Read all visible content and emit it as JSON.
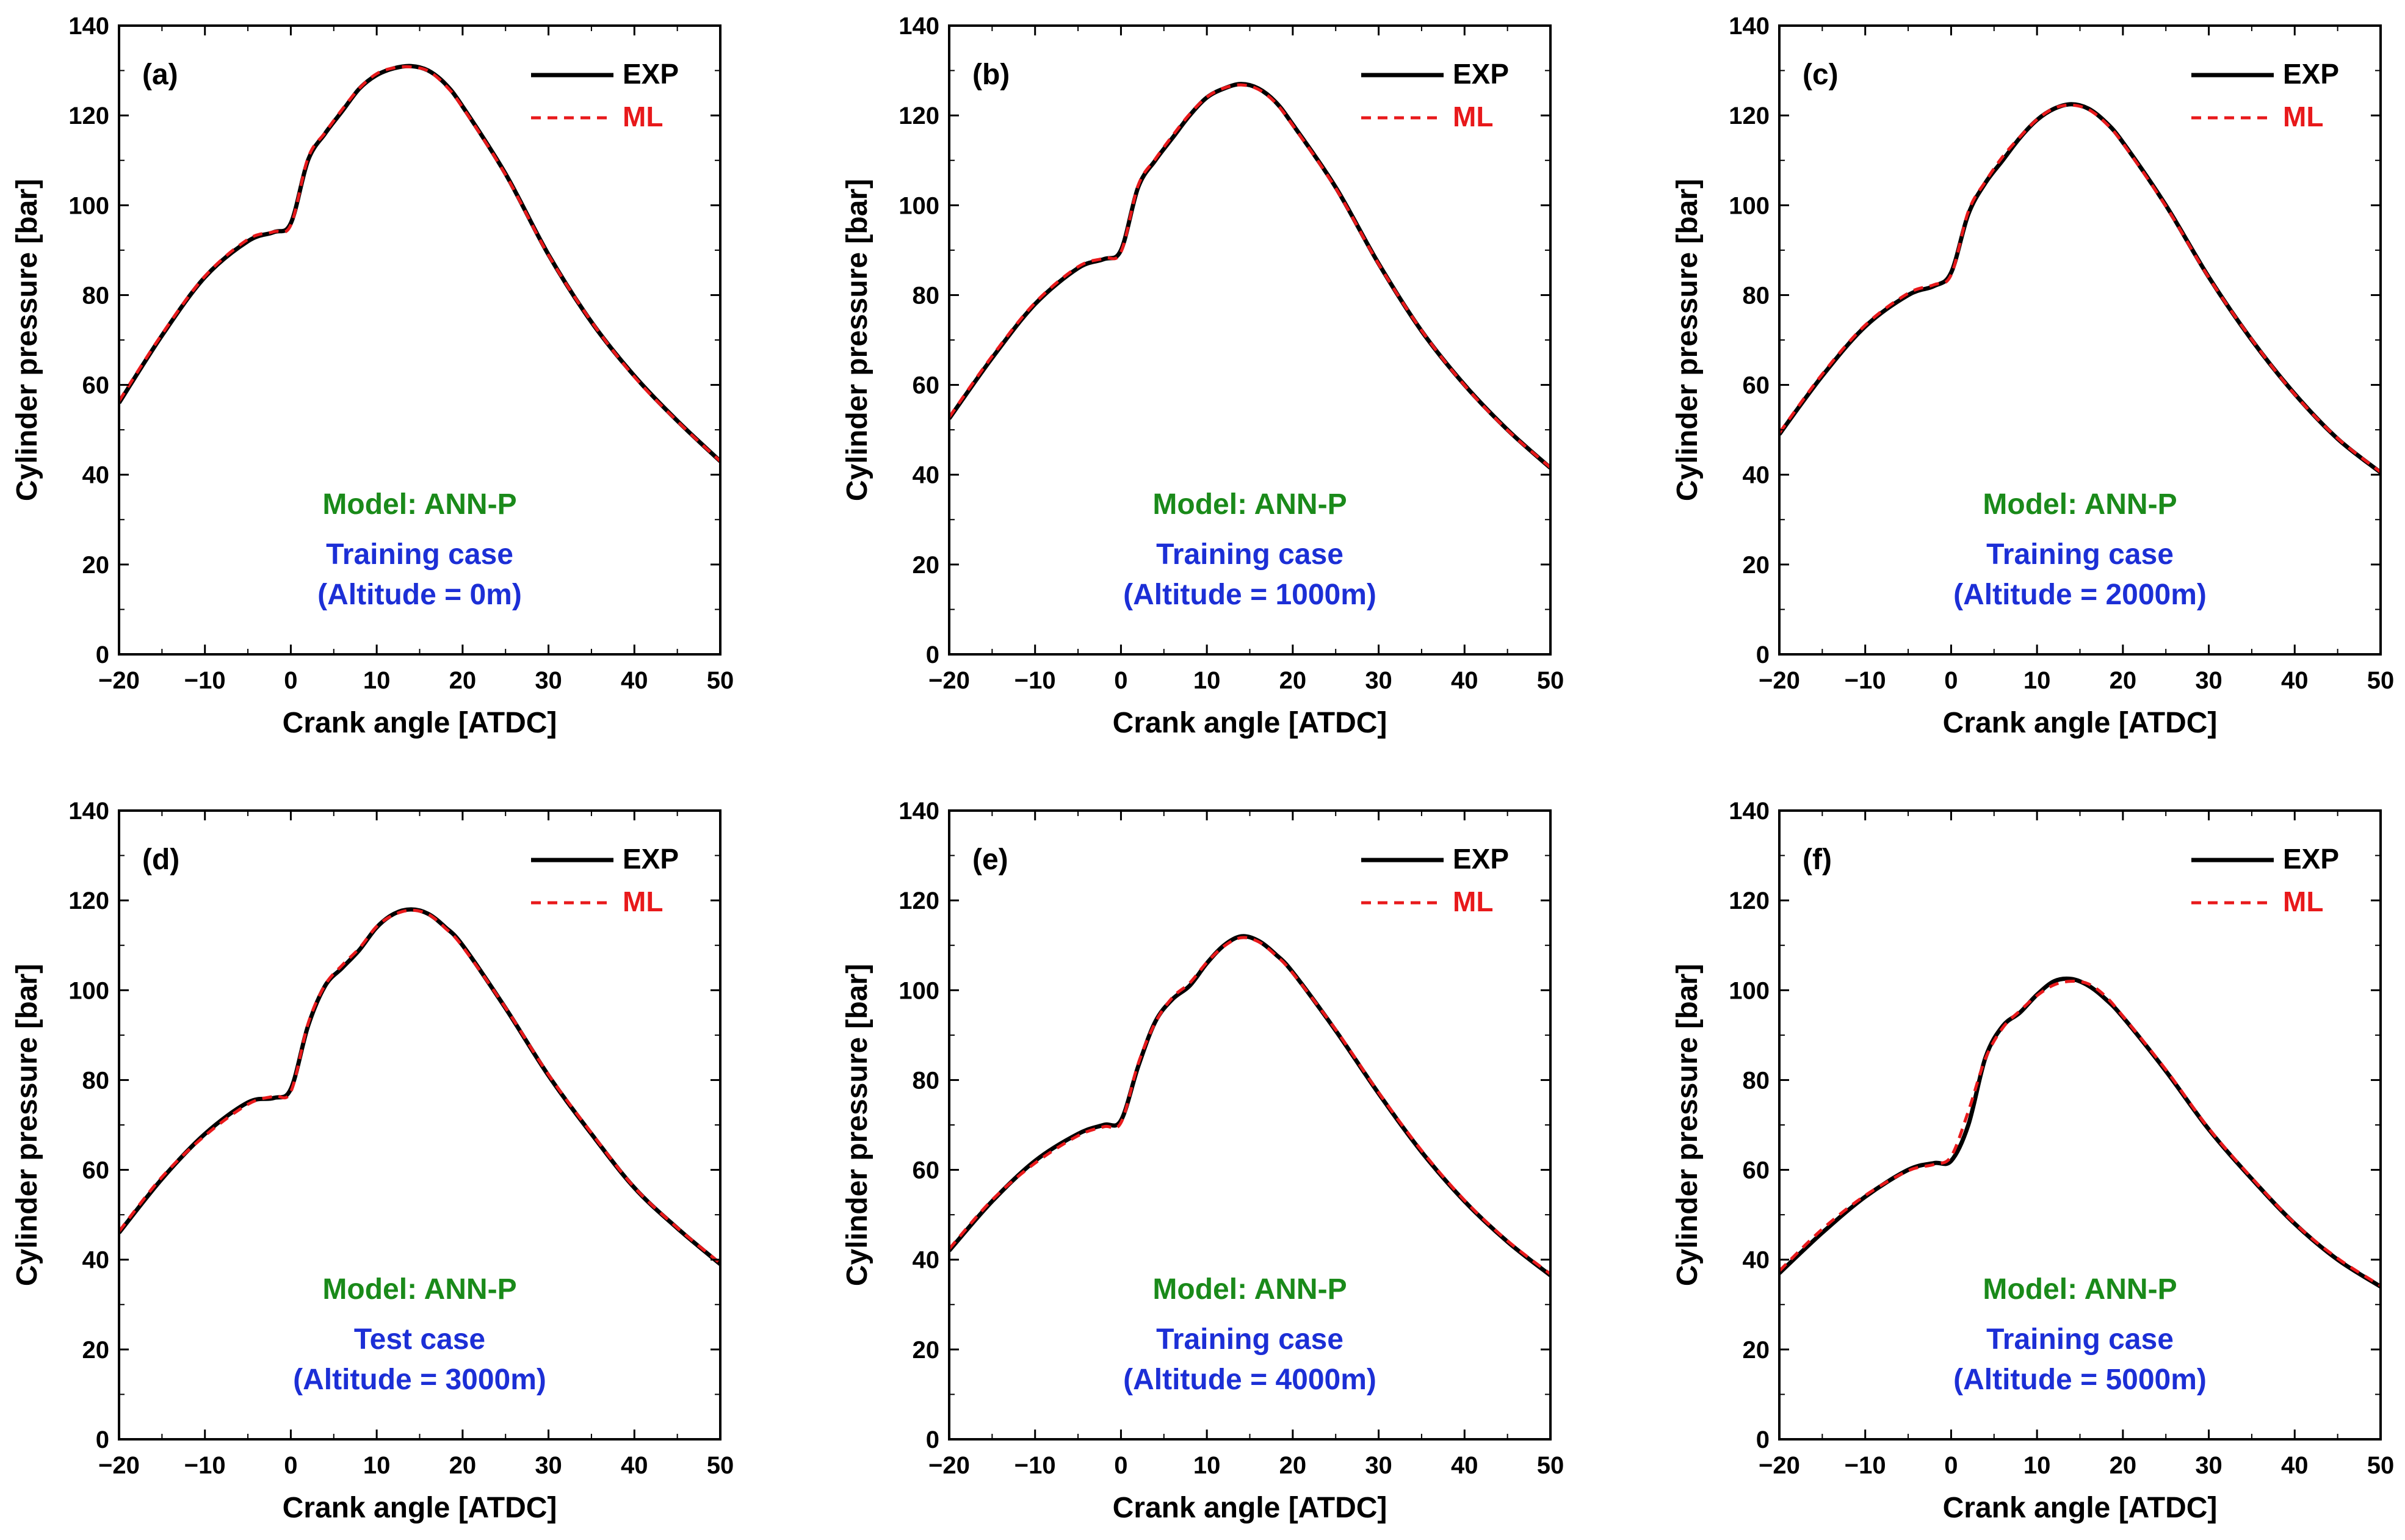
{
  "colors": {
    "exp": "#000000",
    "ml": "#e8191b",
    "model": "#1a8a1a",
    "case": "#1c2fd6",
    "axis": "#000000"
  },
  "chart_data": [
    {
      "type": "line",
      "panel_label": "(a)",
      "xlabel": "Crank angle [ATDC]",
      "ylabel": "Cylinder pressure [bar]",
      "xlim": [
        -20,
        50
      ],
      "ylim": [
        0,
        140
      ],
      "xticks": [
        -20,
        -10,
        0,
        10,
        20,
        30,
        40,
        50
      ],
      "yticks": [
        0,
        20,
        40,
        60,
        80,
        100,
        120,
        140
      ],
      "xtick_labels": [
        "−20",
        "−10",
        "0",
        "10",
        "20",
        "30",
        "40",
        "50"
      ],
      "ytick_labels": [
        "0",
        "20",
        "40",
        "60",
        "80",
        "100",
        "120",
        "140"
      ],
      "legend": [
        "EXP",
        "ML"
      ],
      "legend_position": "top-right",
      "annotations": [
        "Model: ANN-P",
        "Training case",
        "(Altitude = 0m)"
      ],
      "series": [
        {
          "name": "EXP",
          "x": [
            -20,
            -15,
            -10,
            -5,
            -2,
            0,
            2,
            4,
            6,
            8,
            10,
            12,
            14,
            16,
            18,
            20,
            25,
            30,
            35,
            40,
            45,
            50
          ],
          "values": [
            56,
            71,
            84,
            92,
            94,
            96,
            110,
            116,
            121,
            126,
            129,
            130.5,
            131,
            130,
            127,
            122,
            107,
            89,
            74,
            62,
            52,
            43
          ]
        },
        {
          "name": "ML",
          "x": [
            -20,
            -15,
            -10,
            -5,
            -2,
            0,
            2,
            4,
            6,
            8,
            10,
            12,
            14,
            16,
            18,
            20,
            25,
            30,
            35,
            40,
            45,
            50
          ],
          "values": [
            56.4,
            71.3,
            84.2,
            92.4,
            94.1,
            95.6,
            110.5,
            116.2,
            121.4,
            126.1,
            129.3,
            130.6,
            130.8,
            129.9,
            126.7,
            121.8,
            106.8,
            88.9,
            74.1,
            61.8,
            51.9,
            43
          ]
        }
      ]
    },
    {
      "type": "line",
      "panel_label": "(b)",
      "xlabel": "Crank angle [ATDC]",
      "ylabel": "Cylinder pressure [bar]",
      "xlim": [
        -20,
        50
      ],
      "ylim": [
        0,
        140
      ],
      "xticks": [
        -20,
        -10,
        0,
        10,
        20,
        30,
        40,
        50
      ],
      "yticks": [
        0,
        20,
        40,
        60,
        80,
        100,
        120,
        140
      ],
      "xtick_labels": [
        "−20",
        "−10",
        "0",
        "10",
        "20",
        "30",
        "40",
        "50"
      ],
      "ytick_labels": [
        "0",
        "20",
        "40",
        "60",
        "80",
        "100",
        "120",
        "140"
      ],
      "legend": [
        "EXP",
        "ML"
      ],
      "legend_position": "top-right",
      "annotations": [
        "Model: ANN-P",
        "Training case",
        "(Altitude = 1000m)"
      ],
      "series": [
        {
          "name": "EXP",
          "x": [
            -20,
            -15,
            -10,
            -5,
            -2,
            0,
            2,
            4,
            6,
            8,
            10,
            12,
            14,
            16,
            18,
            20,
            25,
            30,
            35,
            40,
            45,
            50
          ],
          "values": [
            52.5,
            66,
            78,
            86,
            88,
            90,
            104,
            110,
            115,
            120,
            124,
            126,
            127,
            126,
            123,
            118,
            104,
            87,
            72,
            60,
            50,
            41.5
          ]
        },
        {
          "name": "ML",
          "x": [
            -20,
            -15,
            -10,
            -5,
            -2,
            0,
            2,
            4,
            6,
            8,
            10,
            12,
            14,
            16,
            18,
            20,
            25,
            30,
            35,
            40,
            45,
            50
          ],
          "values": [
            52.8,
            66.4,
            78.3,
            86.3,
            88.2,
            89.6,
            104.4,
            110.3,
            115.5,
            120.3,
            124.1,
            126.1,
            126.8,
            125.8,
            122.8,
            117.8,
            103.8,
            86.9,
            72.1,
            59.9,
            49.9,
            41.6
          ]
        }
      ]
    },
    {
      "type": "line",
      "panel_label": "(c)",
      "xlabel": "Crank angle [ATDC]",
      "ylabel": "Cylinder pressure [bar]",
      "xlim": [
        -20,
        50
      ],
      "ylim": [
        0,
        140
      ],
      "xticks": [
        -20,
        -10,
        0,
        10,
        20,
        30,
        40,
        50
      ],
      "yticks": [
        0,
        20,
        40,
        60,
        80,
        100,
        120,
        140
      ],
      "xtick_labels": [
        "−20",
        "−10",
        "0",
        "10",
        "20",
        "30",
        "40",
        "50"
      ],
      "ytick_labels": [
        "0",
        "20",
        "40",
        "60",
        "80",
        "100",
        "120",
        "140"
      ],
      "legend": [
        "EXP",
        "ML"
      ],
      "legend_position": "top-right",
      "annotations": [
        "Model: ANN-P",
        "Training case",
        "(Altitude = 2000m)"
      ],
      "series": [
        {
          "name": "EXP",
          "x": [
            -20,
            -15,
            -10,
            -5,
            -2,
            0,
            2,
            4,
            6,
            8,
            10,
            12,
            14,
            16,
            18,
            20,
            25,
            30,
            35,
            40,
            45,
            50
          ],
          "values": [
            49,
            62,
            73,
            80,
            82,
            85,
            98,
            105,
            110,
            115,
            119,
            121.5,
            122.5,
            121.5,
            118.5,
            114,
            100,
            84,
            70,
            58,
            48,
            40.5
          ]
        },
        {
          "name": "ML",
          "x": [
            -20,
            -15,
            -10,
            -5,
            -2,
            0,
            2,
            4,
            6,
            8,
            10,
            12,
            14,
            16,
            18,
            20,
            25,
            30,
            35,
            40,
            45,
            50
          ],
          "values": [
            49.3,
            62.4,
            73.3,
            80.4,
            82.3,
            84.5,
            98.6,
            105.3,
            110.8,
            115.2,
            119.1,
            121.6,
            122.3,
            121.3,
            118.3,
            113.8,
            99.8,
            83.9,
            70.1,
            57.9,
            48.1,
            40.6
          ]
        }
      ]
    },
    {
      "type": "line",
      "panel_label": "(d)",
      "xlabel": "Crank angle [ATDC]",
      "ylabel": "Cylinder pressure [bar]",
      "xlim": [
        -20,
        50
      ],
      "ylim": [
        0,
        140
      ],
      "xticks": [
        -20,
        -10,
        0,
        10,
        20,
        30,
        40,
        50
      ],
      "yticks": [
        0,
        20,
        40,
        60,
        80,
        100,
        120,
        140
      ],
      "xtick_labels": [
        "−20",
        "−10",
        "0",
        "10",
        "20",
        "30",
        "40",
        "50"
      ],
      "ytick_labels": [
        "0",
        "20",
        "40",
        "60",
        "80",
        "100",
        "120",
        "140"
      ],
      "legend": [
        "EXP",
        "ML"
      ],
      "legend_position": "top-right",
      "annotations": [
        "Model: ANN-P",
        "Test case",
        "(Altitude = 3000m)"
      ],
      "series": [
        {
          "name": "EXP",
          "x": [
            -20,
            -15,
            -10,
            -5,
            -2,
            0,
            2,
            4,
            6,
            8,
            10,
            12,
            14,
            16,
            18,
            20,
            25,
            30,
            35,
            40,
            45,
            50
          ],
          "values": [
            46,
            58,
            68,
            75,
            76,
            78,
            92,
            101,
            105,
            109,
            114,
            117,
            118,
            117,
            114,
            110,
            96,
            81,
            68,
            56,
            47,
            39
          ]
        },
        {
          "name": "ML",
          "x": [
            -20,
            -15,
            -10,
            -5,
            -2,
            0,
            2,
            4,
            6,
            8,
            10,
            12,
            14,
            16,
            18,
            20,
            25,
            30,
            35,
            40,
            45,
            50
          ],
          "values": [
            46.3,
            58.4,
            67.6,
            74.6,
            76.4,
            77.4,
            92.5,
            101.2,
            105.6,
            109.4,
            114.2,
            116.8,
            117.8,
            116.9,
            113.8,
            109.7,
            96.1,
            81.2,
            68.2,
            56.1,
            47.1,
            39.2
          ]
        }
      ]
    },
    {
      "type": "line",
      "panel_label": "(e)",
      "xlabel": "Crank angle [ATDC]",
      "ylabel": "Cylinder pressure [bar]",
      "xlim": [
        -20,
        50
      ],
      "ylim": [
        0,
        140
      ],
      "xticks": [
        -20,
        -10,
        0,
        10,
        20,
        30,
        40,
        50
      ],
      "yticks": [
        0,
        20,
        40,
        60,
        80,
        100,
        120,
        140
      ],
      "xtick_labels": [
        "−20",
        "−10",
        "0",
        "10",
        "20",
        "30",
        "40",
        "50"
      ],
      "ytick_labels": [
        "0",
        "20",
        "40",
        "60",
        "80",
        "100",
        "120",
        "140"
      ],
      "legend": [
        "EXP",
        "ML"
      ],
      "legend_position": "top-right",
      "annotations": [
        "Model: ANN-P",
        "Training case",
        "(Altitude = 4000m)"
      ],
      "series": [
        {
          "name": "EXP",
          "x": [
            -20,
            -15,
            -10,
            -5,
            -2,
            0,
            2,
            4,
            6,
            8,
            10,
            12,
            14,
            16,
            18,
            20,
            25,
            30,
            35,
            40,
            45,
            50
          ],
          "values": [
            42,
            53,
            62,
            68,
            70,
            71,
            83,
            93,
            98,
            101,
            106,
            110,
            112,
            111,
            108,
            104,
            91,
            77,
            64,
            53,
            44,
            36.5
          ]
        },
        {
          "name": "ML",
          "x": [
            -20,
            -15,
            -10,
            -5,
            -2,
            0,
            2,
            4,
            6,
            8,
            10,
            12,
            14,
            16,
            18,
            20,
            25,
            30,
            35,
            40,
            45,
            50
          ],
          "values": [
            42.4,
            53.3,
            61.5,
            67.6,
            69.6,
            70.5,
            83.6,
            92.8,
            98.4,
            101.6,
            106.2,
            109.8,
            111.7,
            110.8,
            107.8,
            103.8,
            91.2,
            77.2,
            64.3,
            53.2,
            44.2,
            36.8
          ]
        }
      ]
    },
    {
      "type": "line",
      "panel_label": "(f)",
      "xlabel": "Crank angle [ATDC]",
      "ylabel": "Cylinder pressure [bar]",
      "xlim": [
        -20,
        50
      ],
      "ylim": [
        0,
        140
      ],
      "xticks": [
        -20,
        -10,
        0,
        10,
        20,
        30,
        40,
        50
      ],
      "yticks": [
        0,
        20,
        40,
        60,
        80,
        100,
        120,
        140
      ],
      "xtick_labels": [
        "−20",
        "−10",
        "0",
        "10",
        "20",
        "30",
        "40",
        "50"
      ],
      "ytick_labels": [
        "0",
        "20",
        "40",
        "60",
        "80",
        "100",
        "120",
        "140"
      ],
      "legend": [
        "EXP",
        "ML"
      ],
      "legend_position": "top-right",
      "annotations": [
        "Model: ANN-P",
        "Training case",
        "(Altitude = 5000m)"
      ],
      "series": [
        {
          "name": "EXP",
          "x": [
            -20,
            -15,
            -10,
            -5,
            -2,
            0,
            2,
            4,
            6,
            8,
            10,
            12,
            14,
            16,
            18,
            20,
            25,
            30,
            35,
            40,
            45,
            50
          ],
          "values": [
            37,
            46,
            54,
            60,
            61.5,
            62,
            70,
            85,
            92,
            95,
            99,
            102,
            102.5,
            101,
            98,
            94,
            82,
            69,
            58,
            48,
            40,
            34
          ]
        },
        {
          "name": "ML",
          "x": [
            -20,
            -15,
            -10,
            -5,
            -2,
            0,
            2,
            4,
            6,
            8,
            10,
            12,
            14,
            16,
            18,
            20,
            25,
            30,
            35,
            40,
            45,
            50
          ],
          "values": [
            37.5,
            46.8,
            54.3,
            59.8,
            61.2,
            63,
            73,
            84.8,
            91.6,
            95.4,
            98.8,
            101.2,
            102,
            101.4,
            98.6,
            94.2,
            82.3,
            69.2,
            58.2,
            48.1,
            40.3,
            34.2
          ]
        }
      ]
    }
  ]
}
